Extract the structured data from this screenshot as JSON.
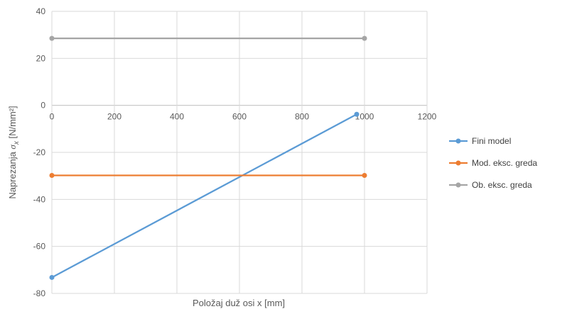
{
  "chart_data": {
    "type": "scatter",
    "xlabel": "Položaj duž osi x [mm]",
    "ylabel_prefix": "Naprezanja ",
    "ylabel_symbol": "σ",
    "ylabel_subscript": "x",
    "ylabel_suffix": " [N/mm²]",
    "xlim": [
      0,
      1200
    ],
    "ylim": [
      -80,
      40
    ],
    "x_ticks": [
      0,
      200,
      400,
      600,
      800,
      1000,
      1200
    ],
    "y_ticks": [
      -80,
      -60,
      -40,
      -20,
      0,
      20,
      40
    ],
    "x_tick_labels": [
      "0",
      "200",
      "400",
      "600",
      "800",
      "1000",
      "1200"
    ],
    "y_tick_labels": [
      "-80",
      "-60",
      "-40",
      "-20",
      "0",
      "20",
      "40"
    ],
    "grid": true,
    "legend_position": "right",
    "series": [
      {
        "name": "Fini model",
        "color": "#5B9BD5",
        "x": [
          0,
          975
        ],
        "y": [
          -73.2,
          -3.8
        ]
      },
      {
        "name": "Mod. eksc. greda",
        "color": "#ED7D31",
        "x": [
          0,
          1000
        ],
        "y": [
          -29.8,
          -29.8
        ]
      },
      {
        "name": "Ob. eksc. greda",
        "color": "#A5A5A5",
        "x": [
          0,
          1000
        ],
        "y": [
          28.5,
          28.5
        ]
      }
    ]
  }
}
